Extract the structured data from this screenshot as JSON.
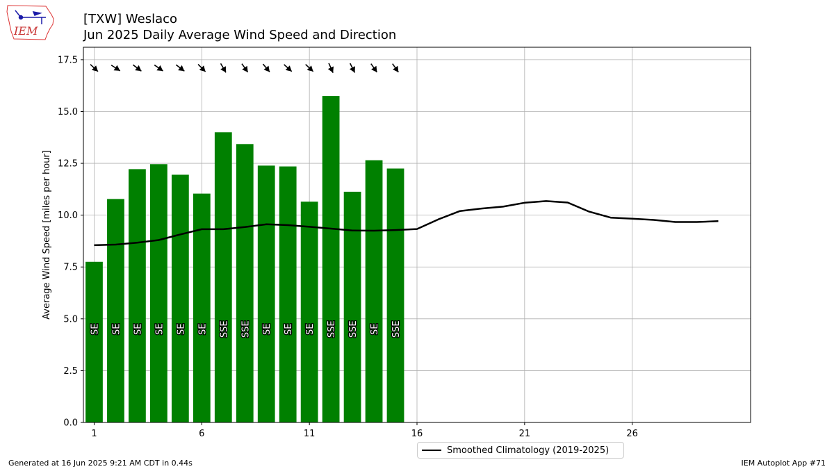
{
  "header": {
    "title_line1": "[TXW] Weslaco",
    "title_line2": "Jun 2025 Daily Average Wind Speed and Direction"
  },
  "logo": {
    "text": "IEM",
    "icon": "iem-iowa-logo"
  },
  "footer": {
    "generated": "Generated at 16 Jun 2025 9:21 AM CDT in 0.44s",
    "app": "IEM Autoplot App #71"
  },
  "legend": {
    "label": "Smoothed Climatology (2019-2025)"
  },
  "colors": {
    "bar": "#008000",
    "climo": "#000000",
    "grid": "#b0b0b0"
  },
  "chart_data": {
    "type": "bar",
    "ylabel": "Average Wind Speed [miles per hour]",
    "ylim": [
      0,
      18.1
    ],
    "yticks": [
      "0.0",
      "2.5",
      "5.0",
      "7.5",
      "10.0",
      "12.5",
      "15.0",
      "17.5"
    ],
    "yticks_values": [
      0,
      2.5,
      5,
      7.5,
      10,
      12.5,
      15,
      17.5
    ],
    "xlim": [
      0.5,
      31.5
    ],
    "xticks": [
      "1",
      "6",
      "11",
      "16",
      "21",
      "26"
    ],
    "xticks_values": [
      1,
      6,
      11,
      16,
      21,
      26
    ],
    "grid": true,
    "bars": {
      "days": [
        1,
        2,
        3,
        4,
        5,
        6,
        7,
        8,
        9,
        10,
        11,
        12,
        13,
        14,
        15
      ],
      "values": [
        7.75,
        10.78,
        12.22,
        12.46,
        11.95,
        11.04,
        14.0,
        13.43,
        12.39,
        12.35,
        10.65,
        15.75,
        11.13,
        12.65,
        12.25
      ],
      "direction_labels": [
        "SE",
        "SE",
        "SE",
        "SE",
        "SE",
        "SE",
        "SSE",
        "SSE",
        "SE",
        "SE",
        "SE",
        "SSE",
        "SSE",
        "SE",
        "SSE"
      ],
      "direction_degrees": [
        133,
        123,
        127,
        125,
        127,
        135,
        150,
        145,
        140,
        132,
        133,
        156,
        153,
        145,
        145
      ]
    },
    "series": [
      {
        "name": "Smoothed Climatology (2019-2025)",
        "x": [
          1,
          2,
          3,
          4,
          5,
          6,
          7,
          8,
          9,
          10,
          11,
          12,
          13,
          14,
          15,
          16,
          17,
          18,
          19,
          20,
          21,
          22,
          23,
          24,
          25,
          26,
          27,
          28,
          29,
          30
        ],
        "values": [
          8.55,
          8.58,
          8.67,
          8.8,
          9.07,
          9.32,
          9.32,
          9.43,
          9.56,
          9.52,
          9.44,
          9.35,
          9.26,
          9.25,
          9.28,
          9.33,
          9.8,
          10.2,
          10.32,
          10.41,
          10.6,
          10.68,
          10.61,
          10.17,
          9.88,
          9.83,
          9.77,
          9.67,
          9.67,
          9.71
        ]
      }
    ]
  }
}
